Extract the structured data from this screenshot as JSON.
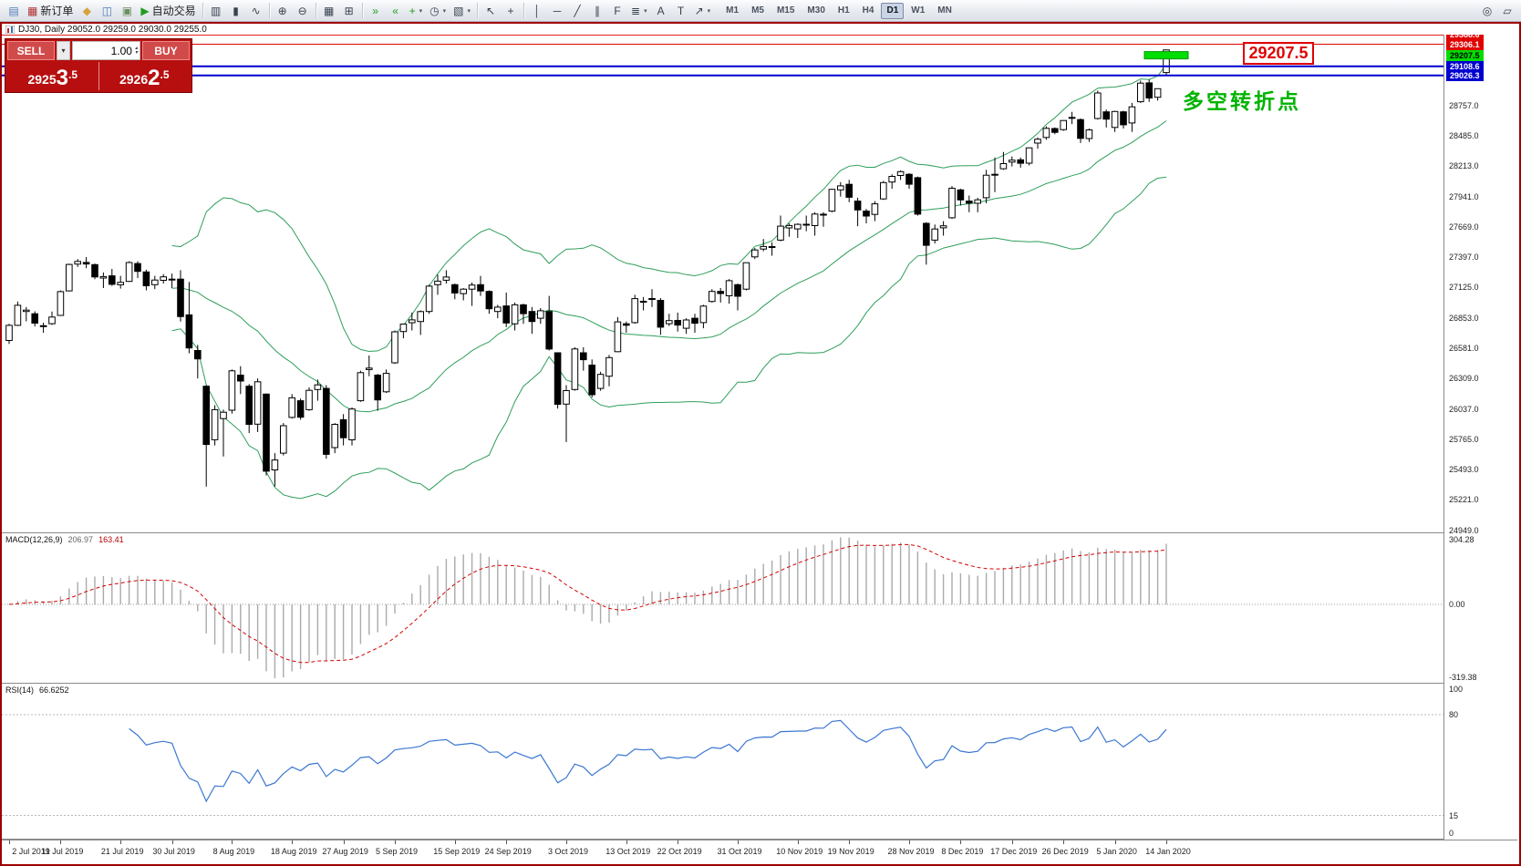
{
  "window": {
    "title": "DJ30, Daily  29052.0 29259.0 29030.0 29255.0"
  },
  "toolbar": {
    "groups": [
      {
        "items": [
          {
            "name": "new-chart-button",
            "icon": "chart-plus-icon",
            "glyph": "▤",
            "color": "#4f7cba"
          },
          {
            "name": "new-order-button",
            "icon": "order-form-icon",
            "glyph": "▦",
            "color": "#b03030",
            "label": "新订单"
          },
          {
            "name": "metaeditor-button",
            "icon": "editor-icon",
            "glyph": "◆",
            "color": "#d8a23a"
          },
          {
            "name": "market-watch-button",
            "icon": "market-watch-icon",
            "glyph": "◫",
            "color": "#4f7cba"
          },
          {
            "name": "terminal-button",
            "icon": "terminal-icon",
            "glyph": "▣",
            "color": "#6a8f5f"
          },
          {
            "name": "autotrading-button",
            "icon": "play-icon",
            "glyph": "▶",
            "color": "#1f9d1f",
            "label": "自动交易"
          }
        ]
      },
      {
        "items": [
          {
            "name": "bar-chart-button",
            "icon": "bar-chart-icon",
            "glyph": "▥"
          },
          {
            "name": "candlestick-chart-button",
            "icon": "candlestick-icon",
            "glyph": "▮"
          },
          {
            "name": "line-chart-button",
            "icon": "line-chart-icon",
            "glyph": "∿"
          }
        ]
      },
      {
        "items": [
          {
            "name": "zoom-in-button",
            "icon": "zoom-in-icon",
            "glyph": "⊕"
          },
          {
            "name": "zoom-out-button",
            "icon": "zoom-out-icon",
            "glyph": "⊖"
          }
        ]
      },
      {
        "items": [
          {
            "name": "tile-windows-button",
            "icon": "tile-windows-icon",
            "glyph": "▦"
          },
          {
            "name": "arrange-windows-button",
            "icon": "grid-icon",
            "glyph": "⊞"
          }
        ]
      },
      {
        "items": [
          {
            "name": "auto-scroll-button",
            "icon": "auto-scroll-icon",
            "glyph": "»",
            "color": "#1f9d1f"
          },
          {
            "name": "chart-shift-button",
            "icon": "chart-shift-icon",
            "glyph": "«",
            "color": "#1f9d1f"
          },
          {
            "name": "indicators-button",
            "icon": "indicator-plus-icon",
            "glyph": "+",
            "color": "#1f9d1f",
            "dropdown": true
          },
          {
            "name": "periods-button",
            "icon": "clock-icon",
            "glyph": "◷",
            "dropdown": true
          },
          {
            "name": "templates-button",
            "icon": "template-icon",
            "glyph": "▧",
            "dropdown": true
          }
        ]
      },
      {
        "items": [
          {
            "name": "cursor-button",
            "icon": "cursor-icon",
            "glyph": "↖"
          },
          {
            "name": "crosshair-button",
            "icon": "crosshair-icon",
            "glyph": "+"
          }
        ]
      },
      {
        "items": [
          {
            "name": "vertical-line-button",
            "icon": "vertical-line-icon",
            "glyph": "│"
          },
          {
            "name": "horizontal-line-button",
            "icon": "horizontal-line-icon",
            "glyph": "─"
          },
          {
            "name": "trendline-button",
            "icon": "trendline-icon",
            "glyph": "╱"
          },
          {
            "name": "channel-button",
            "icon": "channel-icon",
            "glyph": "∥"
          },
          {
            "name": "fibonacci-button",
            "icon": "fibonacci-icon",
            "glyph": "F"
          },
          {
            "name": "shapes-button",
            "icon": "shapes-icon",
            "glyph": "≣",
            "dropdown": true
          },
          {
            "name": "text-button",
            "icon": "text-icon",
            "glyph": "A"
          },
          {
            "name": "label-button",
            "icon": "label-icon",
            "glyph": "T"
          },
          {
            "name": "arrows-button",
            "icon": "arrow-icon",
            "glyph": "↗",
            "dropdown": true
          }
        ]
      }
    ],
    "timeframes": [
      "M1",
      "M5",
      "M15",
      "M30",
      "H1",
      "H4",
      "D1",
      "W1",
      "MN"
    ],
    "active_timeframe": "D1",
    "right_items": [
      {
        "name": "chart-search-button",
        "icon": "search-icon",
        "glyph": "◎"
      },
      {
        "name": "window-mode-button",
        "icon": "window-icon",
        "glyph": "▱"
      }
    ]
  },
  "trade_panel": {
    "sell_label": "SELL",
    "buy_label": "BUY",
    "quantity": "1.00",
    "sell_price": "29253.5",
    "buy_price": "29262.5",
    "sell_base": "2925",
    "sell_big": "3",
    "sell_frac": ".5",
    "buy_base": "2926",
    "buy_big": "2",
    "buy_frac": ".5"
  },
  "annotations": {
    "price_callout": "29207.5",
    "turning_point_text": "多空转折点",
    "horizontal_lines": [
      {
        "price": 29388.6,
        "label": "29388.6",
        "color": "#e00000",
        "width": 1,
        "tag_bg": "#e00000",
        "tag_fg": "#ffffff"
      },
      {
        "price": 29306.1,
        "label": "29306.1",
        "color": "#e00000",
        "width": 1,
        "tag_bg": "#e00000",
        "tag_fg": "#ffffff"
      },
      {
        "price": 29207.5,
        "label": "29207.5",
        "color": "#00dd00",
        "band": true,
        "tag_bg": "#00dd00",
        "tag_fg": "#000000"
      },
      {
        "price": 29108.6,
        "label": "29108.6",
        "color": "#0000cf",
        "width": 2,
        "tag_bg": "#0000cf",
        "tag_fg": "#ffffff"
      },
      {
        "price": 29026.3,
        "label": "29026.3",
        "color": "#0000cf",
        "width": 2,
        "tag_bg": "#0000cf",
        "tag_fg": "#ffffff"
      }
    ]
  },
  "colors": {
    "bull": "#ffffff",
    "bear": "#000000",
    "outline": "#000000",
    "background": "#ffffff",
    "panel_red": "#b70f0f",
    "button_red": "#d14a4a",
    "accent_green": "#00b300"
  },
  "chart_data": {
    "type": "candlestick",
    "symbol": "DJ30",
    "timeframe": "Daily",
    "last_ohlc": {
      "open": 29052.0,
      "high": 29259.0,
      "low": 29030.0,
      "close": 29255.0
    },
    "price_range": {
      "top": 29392,
      "bottom": 24930
    },
    "y_axis_labels": [
      "28757.0",
      "28485.0",
      "28213.0",
      "27941.0",
      "27669.0",
      "27397.0",
      "27125.0",
      "26853.0",
      "26581.0",
      "26309.0",
      "26037.0",
      "25765.0",
      "25493.0",
      "25221.0",
      "24949.0"
    ],
    "x_ticks": [
      {
        "label": "2 Jul 2019",
        "bar": 0
      },
      {
        "label": "11 Jul 2019",
        "bar": 6
      },
      {
        "label": "21 Jul 2019",
        "bar": 13
      },
      {
        "label": "30 Jul 2019",
        "bar": 19
      },
      {
        "label": "8 Aug 2019",
        "bar": 26
      },
      {
        "label": "18 Aug 2019",
        "bar": 33
      },
      {
        "label": "27 Aug 2019",
        "bar": 39
      },
      {
        "label": "5 Sep 2019",
        "bar": 45
      },
      {
        "label": "15 Sep 2019",
        "bar": 52
      },
      {
        "label": "24 Sep 2019",
        "bar": 58
      },
      {
        "label": "3 Oct 2019",
        "bar": 65
      },
      {
        "label": "13 Oct 2019",
        "bar": 72
      },
      {
        "label": "22 Oct 2019",
        "bar": 78
      },
      {
        "label": "31 Oct 2019",
        "bar": 85
      },
      {
        "label": "10 Nov 2019",
        "bar": 92
      },
      {
        "label": "19 Nov 2019",
        "bar": 98
      },
      {
        "label": "28 Nov 2019",
        "bar": 105
      },
      {
        "label": "8 Dec 2019",
        "bar": 111
      },
      {
        "label": "17 Dec 2019",
        "bar": 117
      },
      {
        "label": "26 Dec 2019",
        "bar": 123
      },
      {
        "label": "5 Jan 2020",
        "bar": 129
      },
      {
        "label": "14 Jan 2020",
        "bar": 135
      }
    ],
    "indicators": {
      "bollinger": {
        "name": "Bollinger Bands",
        "period": 20,
        "deviation": 2,
        "color": "#2e9e5b"
      },
      "macd": {
        "label": "MACD(12,26,9)",
        "main_value": "206.97",
        "signal_value": "163.41",
        "axis_labels": [
          "304.28",
          "0.00",
          "-319.38"
        ],
        "hist_color": "#aaaaaa",
        "signal_color": "#d40000"
      },
      "rsi": {
        "label": "RSI(14)",
        "value": "66.6252",
        "axis_labels": [
          "100",
          "80",
          "15",
          "0"
        ],
        "levels": [
          80,
          15
        ],
        "color": "#3b77d2"
      }
    },
    "candles": [
      [
        26650,
        26800,
        26620,
        26786
      ],
      [
        26786,
        26999,
        26780,
        26966
      ],
      [
        26910,
        26950,
        26822,
        26922
      ],
      [
        26890,
        26912,
        26775,
        26806
      ],
      [
        26780,
        26810,
        26719,
        26783
      ],
      [
        26800,
        26910,
        26790,
        26860
      ],
      [
        26875,
        27099,
        26870,
        27088
      ],
      [
        27095,
        27339,
        27090,
        27332
      ],
      [
        27335,
        27380,
        27310,
        27359
      ],
      [
        27350,
        27398,
        27298,
        27336
      ],
      [
        27330,
        27340,
        27200,
        27220
      ],
      [
        27210,
        27260,
        27120,
        27223
      ],
      [
        27230,
        27292,
        27140,
        27154
      ],
      [
        27150,
        27230,
        27115,
        27172
      ],
      [
        27180,
        27360,
        27175,
        27349
      ],
      [
        27340,
        27360,
        27210,
        27270
      ],
      [
        27265,
        27285,
        27100,
        27141
      ],
      [
        27150,
        27230,
        27110,
        27192
      ],
      [
        27190,
        27245,
        27160,
        27221
      ],
      [
        27200,
        27250,
        27120,
        27198
      ],
      [
        27200,
        27280,
        26820,
        26864
      ],
      [
        26880,
        27175,
        26535,
        26583
      ],
      [
        26560,
        26610,
        26310,
        26485
      ],
      [
        26240,
        26250,
        25340,
        25718
      ],
      [
        25760,
        26070,
        25710,
        26030
      ],
      [
        25950,
        26030,
        25610,
        26007
      ],
      [
        26025,
        26390,
        25995,
        26378
      ],
      [
        26340,
        26420,
        26170,
        26287
      ],
      [
        26240,
        26260,
        25820,
        25898
      ],
      [
        25900,
        26310,
        25830,
        26280
      ],
      [
        26170,
        26175,
        25440,
        25479
      ],
      [
        25490,
        25640,
        25340,
        25579
      ],
      [
        25640,
        25910,
        25620,
        25886
      ],
      [
        25960,
        26170,
        25950,
        26136
      ],
      [
        26110,
        26130,
        25940,
        25962
      ],
      [
        26030,
        26230,
        26020,
        26203
      ],
      [
        26210,
        26300,
        26110,
        26252
      ],
      [
        26220,
        26250,
        25590,
        25629
      ],
      [
        25690,
        25910,
        25640,
        25898
      ],
      [
        25940,
        25990,
        25710,
        25778
      ],
      [
        25760,
        26050,
        25710,
        26036
      ],
      [
        26110,
        26380,
        26100,
        26362
      ],
      [
        26390,
        26515,
        26330,
        26403
      ],
      [
        26340,
        26350,
        26020,
        26118
      ],
      [
        26190,
        26390,
        26180,
        26355
      ],
      [
        26450,
        26740,
        26440,
        26728
      ],
      [
        26730,
        26800,
        26670,
        26797
      ],
      [
        26810,
        26900,
        26740,
        26835
      ],
      [
        26820,
        26920,
        26700,
        26909
      ],
      [
        26910,
        27150,
        26890,
        27137
      ],
      [
        27150,
        27240,
        27060,
        27182
      ],
      [
        27190,
        27280,
        27160,
        27219
      ],
      [
        27150,
        27160,
        27020,
        27076
      ],
      [
        27070,
        27120,
        27010,
        27110
      ],
      [
        27110,
        27170,
        26960,
        27147
      ],
      [
        27150,
        27230,
        27050,
        27094
      ],
      [
        27090,
        27100,
        26890,
        26935
      ],
      [
        26910,
        26970,
        26850,
        26949
      ],
      [
        26960,
        27080,
        26770,
        26807
      ],
      [
        26800,
        26990,
        26740,
        26970
      ],
      [
        26970,
        26980,
        26800,
        26891
      ],
      [
        26910,
        26950,
        26710,
        26820
      ],
      [
        26850,
        26940,
        26800,
        26917
      ],
      [
        26910,
        27050,
        26560,
        26573
      ],
      [
        26540,
        26545,
        26040,
        26078
      ],
      [
        26080,
        26250,
        25740,
        26201
      ],
      [
        26210,
        26590,
        26200,
        26574
      ],
      [
        26540,
        26590,
        26380,
        26478
      ],
      [
        26430,
        26480,
        26140,
        26164
      ],
      [
        26220,
        26370,
        26200,
        26346
      ],
      [
        26330,
        26520,
        26240,
        26497
      ],
      [
        26550,
        26860,
        26545,
        26817
      ],
      [
        26800,
        26820,
        26720,
        26787
      ],
      [
        26810,
        27060,
        26800,
        27025
      ],
      [
        27000,
        27040,
        26920,
        27002
      ],
      [
        27020,
        27110,
        26950,
        27026
      ],
      [
        27010,
        27030,
        26700,
        26770
      ],
      [
        26800,
        26890,
        26780,
        26828
      ],
      [
        26830,
        26900,
        26730,
        26788
      ],
      [
        26760,
        26850,
        26710,
        26834
      ],
      [
        26850,
        26890,
        26720,
        26805
      ],
      [
        26810,
        26970,
        26760,
        26958
      ],
      [
        27000,
        27110,
        26990,
        27090
      ],
      [
        27090,
        27120,
        26990,
        27071
      ],
      [
        27050,
        27200,
        26980,
        27186
      ],
      [
        27150,
        27160,
        26920,
        27046
      ],
      [
        27110,
        27350,
        27100,
        27347
      ],
      [
        27400,
        27480,
        27380,
        27462
      ],
      [
        27470,
        27560,
        27450,
        27493
      ],
      [
        27490,
        27530,
        27410,
        27492
      ],
      [
        27550,
        27770,
        27540,
        27675
      ],
      [
        27660,
        27700,
        27580,
        27681
      ],
      [
        27650,
        27700,
        27570,
        27691
      ],
      [
        27690,
        27770,
        27630,
        27692
      ],
      [
        27680,
        27800,
        27590,
        27784
      ],
      [
        27780,
        27800,
        27670,
        27782
      ],
      [
        27810,
        28010,
        27800,
        28005
      ],
      [
        28000,
        28070,
        27940,
        28036
      ],
      [
        28050,
        28090,
        27890,
        27934
      ],
      [
        27900,
        27930,
        27675,
        27821
      ],
      [
        27810,
        27830,
        27700,
        27766
      ],
      [
        27780,
        27900,
        27720,
        27875
      ],
      [
        27920,
        28080,
        27910,
        28066
      ],
      [
        28070,
        28140,
        28010,
        28121
      ],
      [
        28130,
        28175,
        28090,
        28164
      ],
      [
        28140,
        28150,
        28010,
        28051
      ],
      [
        28110,
        28120,
        27770,
        27783
      ],
      [
        27700,
        27710,
        27330,
        27503
      ],
      [
        27550,
        27690,
        27520,
        27650
      ],
      [
        27660,
        27720,
        27590,
        27678
      ],
      [
        27750,
        28035,
        27740,
        28015
      ],
      [
        28000,
        28010,
        27860,
        27910
      ],
      [
        27900,
        27950,
        27800,
        27882
      ],
      [
        27880,
        27930,
        27800,
        27911
      ],
      [
        27930,
        28180,
        27880,
        28132
      ],
      [
        28140,
        28290,
        27980,
        28135
      ],
      [
        28190,
        28340,
        28180,
        28236
      ],
      [
        28250,
        28300,
        28210,
        28267
      ],
      [
        28270,
        28290,
        28200,
        28239
      ],
      [
        28240,
        28380,
        28220,
        28377
      ],
      [
        28420,
        28470,
        28370,
        28455
      ],
      [
        28470,
        28570,
        28450,
        28552
      ],
      [
        28550,
        28560,
        28500,
        28516
      ],
      [
        28540,
        28625,
        28530,
        28622
      ],
      [
        28650,
        28700,
        28590,
        28645
      ],
      [
        28630,
        28640,
        28420,
        28462
      ],
      [
        28460,
        28550,
        28430,
        28538
      ],
      [
        28640,
        28890,
        28630,
        28869
      ],
      [
        28700,
        28720,
        28560,
        28635
      ],
      [
        28560,
        28710,
        28520,
        28703
      ],
      [
        28700,
        28710,
        28550,
        28584
      ],
      [
        28600,
        28780,
        28520,
        28745
      ],
      [
        28790,
        28980,
        28780,
        28957
      ],
      [
        28960,
        28990,
        28790,
        28824
      ],
      [
        28830,
        28910,
        28800,
        28907
      ],
      [
        29052,
        29259,
        29030,
        29255
      ]
    ]
  }
}
